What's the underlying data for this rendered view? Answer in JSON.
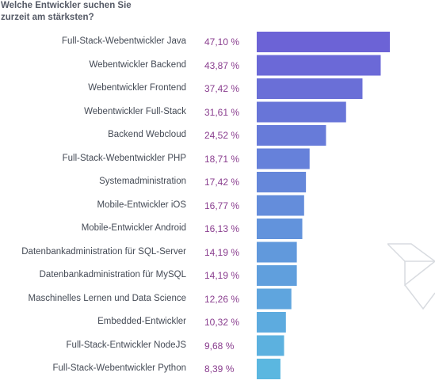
{
  "chart_data": {
    "type": "bar",
    "orientation": "horizontal",
    "title_lines": [
      "Welche Entwickler suchen Sie",
      "zurzeit am stärksten?"
    ],
    "categories": [
      "Full-Stack-Webentwickler Java",
      "Webentwickler Backend",
      "Webentwickler Frontend",
      "Webentwickler Full-Stack",
      "Backend Webcloud",
      "Full-Stack-Webentwickler PHP",
      "Systemadministration",
      "Mobile-Entwickler iOS",
      "Mobile-Entwickler Android",
      "Datenbankadministration für SQL-Server",
      "Datenbankadministration für MySQL",
      "Maschinelles Lernen und Data Science",
      "Embedded-Entwickler",
      "Full-Stack-Entwickler NodeJS",
      "Full-Stack-Webentwickler Python"
    ],
    "values": [
      47.1,
      43.87,
      37.42,
      31.61,
      24.52,
      18.71,
      17.42,
      16.77,
      16.13,
      14.19,
      14.19,
      12.26,
      10.32,
      9.68,
      8.39
    ],
    "value_labels": [
      "47,10 %",
      "43,87 %",
      "37,42 %",
      "31,61 %",
      "24,52 %",
      "18,71 %",
      "17,42 %",
      "16,77 %",
      "16,13 %",
      "14,19 %",
      "14,19 %",
      "12,26 %",
      "10,32 %",
      "9,68 %",
      "8,39 %"
    ],
    "xlim": [
      0,
      47.1
    ],
    "colors": {
      "bar_start": "#6c63d6",
      "bar_end": "#5bb7e0",
      "label": "#444a55",
      "value": "#8a3e8f",
      "title": "#555a66"
    },
    "grid": false,
    "legend": "none"
  }
}
